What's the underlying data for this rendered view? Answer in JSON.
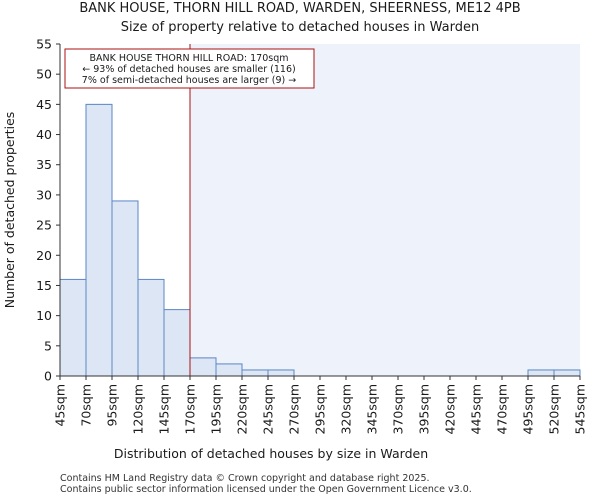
{
  "chart_data": {
    "type": "bar",
    "title_line1": "BANK HOUSE, THORN HILL ROAD, WARDEN, SHEERNESS, ME12 4PB",
    "title_line2": "Size of property relative to detached houses in Warden",
    "xlabel": "Distribution of detached houses by size in Warden",
    "ylabel": "Number of detached properties",
    "bin_edges": [
      45,
      70,
      95,
      120,
      145,
      170,
      195,
      220,
      245,
      270,
      295,
      320,
      345,
      370,
      395,
      420,
      445,
      470,
      495,
      520,
      545
    ],
    "tick_labels": [
      "45sqm",
      "70sqm",
      "95sqm",
      "120sqm",
      "145sqm",
      "170sqm",
      "195sqm",
      "220sqm",
      "245sqm",
      "270sqm",
      "295sqm",
      "320sqm",
      "345sqm",
      "370sqm",
      "395sqm",
      "420sqm",
      "445sqm",
      "470sqm",
      "495sqm",
      "520sqm",
      "545sqm"
    ],
    "values": [
      16,
      45,
      29,
      16,
      11,
      3,
      2,
      1,
      1,
      0,
      0,
      0,
      0,
      0,
      0,
      0,
      0,
      0,
      1,
      1
    ],
    "ylim": [
      0,
      55
    ],
    "yticks": [
      0,
      5,
      10,
      15,
      20,
      25,
      30,
      35,
      40,
      45,
      50,
      55
    ],
    "xlim": [
      45,
      545
    ],
    "marker_value": 170,
    "annotation": {
      "line1": "BANK HOUSE THORN HILL ROAD: 170sqm",
      "line2": "← 93% of detached houses are smaller (116)",
      "line3": "7% of semi-detached houses are larger (9) →"
    },
    "colors": {
      "bar_fill": "#dce6f4",
      "bar_stroke": "#5b86c5",
      "highlight_region": "#eef2fa",
      "marker_line": "#aa1111",
      "annotation_border": "#aa1111",
      "axis": "#333333"
    }
  },
  "footer": {
    "line1": "Contains HM Land Registry data © Crown copyright and database right 2025.",
    "line2": "Contains public sector information licensed under the Open Government Licence v3.0."
  }
}
